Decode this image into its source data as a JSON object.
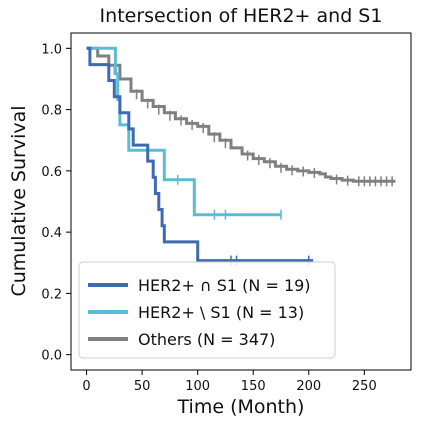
{
  "chart_data": {
    "type": "line",
    "subtype": "kaplan-meier",
    "title": "Intersection of HER2+ and S1",
    "xlabel": "Time (Month)",
    "ylabel": "Cumulative Survival",
    "xlim": [
      -14,
      292
    ],
    "ylim": [
      -0.05,
      1.05
    ],
    "xticks": [
      0,
      50,
      100,
      150,
      200,
      250
    ],
    "yticks": [
      0.0,
      0.2,
      0.4,
      0.6,
      0.8,
      1.0
    ],
    "xtick_labels": [
      "0",
      "50",
      "100",
      "150",
      "200",
      "250"
    ],
    "ytick_labels": [
      "0.0",
      "0.2",
      "0.4",
      "0.6",
      "0.8",
      "1.0"
    ],
    "grid": false,
    "legend_position": "bottom-left",
    "series": [
      {
        "name": "HER2+ ∩ S1 (N = 19)",
        "color": "#3d6ab3",
        "steps": [
          [
            0,
            1.0
          ],
          [
            3,
            0.947
          ],
          [
            20,
            0.895
          ],
          [
            25,
            0.842
          ],
          [
            30,
            0.79
          ],
          [
            38,
            0.737
          ],
          [
            42,
            0.684
          ],
          [
            55,
            0.632
          ],
          [
            60,
            0.579
          ],
          [
            62,
            0.526
          ],
          [
            65,
            0.474
          ],
          [
            68,
            0.421
          ],
          [
            70,
            0.368
          ],
          [
            100,
            0.307
          ],
          [
            204,
            0.307
          ]
        ],
        "censored": [
          [
            130,
            0.307
          ],
          [
            135,
            0.307
          ],
          [
            200,
            0.307
          ]
        ]
      },
      {
        "name": "HER2+ \\  S1 (N = 13)",
        "color": "#5bbcd6",
        "steps": [
          [
            0,
            1.0
          ],
          [
            26,
            0.917
          ],
          [
            28,
            0.833
          ],
          [
            30,
            0.75
          ],
          [
            38,
            0.667
          ],
          [
            70,
            0.571
          ],
          [
            97,
            0.457
          ],
          [
            175,
            0.457
          ]
        ],
        "censored": [
          [
            82,
            0.571
          ],
          [
            115,
            0.457
          ],
          [
            125,
            0.457
          ],
          [
            175,
            0.457
          ]
        ]
      },
      {
        "name": "Others (N = 347)",
        "color": "#808080",
        "steps": [
          [
            0,
            1.0
          ],
          [
            10,
            0.975
          ],
          [
            20,
            0.945
          ],
          [
            30,
            0.9
          ],
          [
            40,
            0.86
          ],
          [
            50,
            0.83
          ],
          [
            60,
            0.81
          ],
          [
            70,
            0.79
          ],
          [
            80,
            0.77
          ],
          [
            90,
            0.755
          ],
          [
            100,
            0.745
          ],
          [
            110,
            0.72
          ],
          [
            120,
            0.7
          ],
          [
            130,
            0.675
          ],
          [
            140,
            0.655
          ],
          [
            150,
            0.64
          ],
          [
            160,
            0.63
          ],
          [
            170,
            0.615
          ],
          [
            180,
            0.605
          ],
          [
            190,
            0.6
          ],
          [
            200,
            0.595
          ],
          [
            210,
            0.59
          ],
          [
            215,
            0.58
          ],
          [
            220,
            0.575
          ],
          [
            230,
            0.57
          ],
          [
            240,
            0.566
          ],
          [
            278,
            0.566
          ]
        ],
        "censored": [
          [
            25,
            0.93
          ],
          [
            45,
            0.85
          ],
          [
            55,
            0.82
          ],
          [
            65,
            0.8
          ],
          [
            75,
            0.78
          ],
          [
            85,
            0.765
          ],
          [
            95,
            0.75
          ],
          [
            105,
            0.74
          ],
          [
            115,
            0.71
          ],
          [
            125,
            0.69
          ],
          [
            145,
            0.65
          ],
          [
            155,
            0.635
          ],
          [
            165,
            0.625
          ],
          [
            175,
            0.61
          ],
          [
            185,
            0.602
          ],
          [
            195,
            0.598
          ],
          [
            205,
            0.593
          ],
          [
            225,
            0.572
          ],
          [
            235,
            0.568
          ],
          [
            245,
            0.566
          ],
          [
            250,
            0.566
          ],
          [
            255,
            0.566
          ],
          [
            260,
            0.566
          ],
          [
            265,
            0.566
          ],
          [
            270,
            0.566
          ],
          [
            275,
            0.566
          ]
        ]
      }
    ]
  }
}
